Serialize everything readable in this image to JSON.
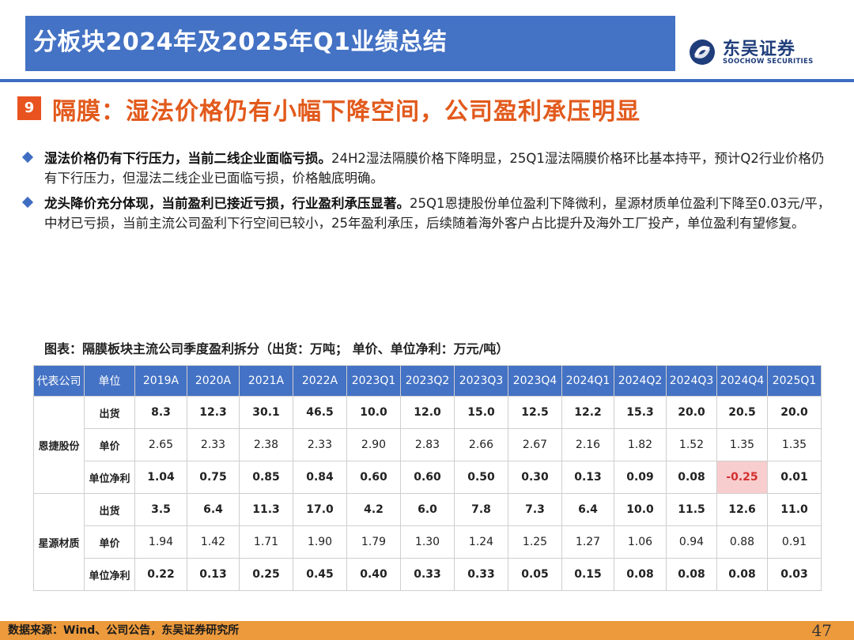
{
  "header": {
    "title": "分板块2024年及2025年Q1业绩总结"
  },
  "logo": {
    "cn": "东吴证券",
    "en": "SOOCHOW SECURITIES"
  },
  "section": {
    "number": "9",
    "title": "隔膜：湿法价格仍有小幅下降空间，公司盈利承压明显"
  },
  "bullets": [
    {
      "bold": "湿法价格仍有下行压力，当前二线企业面临亏损。",
      "text": "24H2湿法隔膜价格下降明显，25Q1湿法隔膜价格环比基本持平，预计Q2行业价格仍有下行压力，但湿法二线企业已面临亏损，价格触底明确。"
    },
    {
      "bold": "龙头降价充分体现，当前盈利已接近亏损，行业盈利承压显著。",
      "text": "25Q1恩捷股份单位盈利下降微利，星源材质单位盈利下降至0.03元/平，中材已亏损，当前主流公司盈利下行空间已较小，25年盈利承压，后续随着海外客户占比提升及海外工厂投产，单位盈利有望修复。"
    }
  ],
  "table": {
    "title": "图表：隔膜板块主流公司季度盈利拆分（出货：万吨； 单价、单位净利：万元/吨）",
    "headers": [
      "代表公司",
      "单位",
      "2019A",
      "2020A",
      "2021A",
      "2022A",
      "2023Q1",
      "2023Q2",
      "2023Q3",
      "2023Q4",
      "2024Q1",
      "2024Q2",
      "2024Q3",
      "2024Q4",
      "2025Q1"
    ],
    "companies": [
      {
        "name": "恩捷股份",
        "rows": [
          {
            "unit": "出货",
            "values": [
              "8.3",
              "12.3",
              "30.1",
              "46.5",
              "10.0",
              "12.0",
              "15.0",
              "12.5",
              "12.2",
              "15.3",
              "20.0",
              "20.5",
              "20.0"
            ]
          },
          {
            "unit": "单价",
            "values": [
              "2.65",
              "2.33",
              "2.38",
              "2.33",
              "2.90",
              "2.83",
              "2.66",
              "2.67",
              "2.16",
              "1.82",
              "1.52",
              "1.35",
              "1.35"
            ]
          },
          {
            "unit": "单位净利",
            "values": [
              "1.04",
              "0.75",
              "0.85",
              "0.84",
              "0.60",
              "0.60",
              "0.50",
              "0.30",
              "0.13",
              "0.09",
              "0.08",
              "-0.25",
              "0.01"
            ]
          }
        ]
      },
      {
        "name": "星源材质",
        "rows": [
          {
            "unit": "出货",
            "values": [
              "3.5",
              "6.4",
              "11.3",
              "17.0",
              "4.2",
              "6.0",
              "7.8",
              "7.3",
              "6.4",
              "10.0",
              "11.5",
              "12.6",
              "11.0"
            ]
          },
          {
            "unit": "单价",
            "values": [
              "1.94",
              "1.42",
              "1.71",
              "1.90",
              "1.79",
              "1.30",
              "1.24",
              "1.25",
              "1.27",
              "1.06",
              "0.94",
              "0.88",
              "0.91"
            ]
          },
          {
            "unit": "单位净利",
            "values": [
              "0.22",
              "0.13",
              "0.25",
              "0.45",
              "0.40",
              "0.33",
              "0.33",
              "0.05",
              "0.15",
              "0.08",
              "0.08",
              "0.08",
              "0.03"
            ]
          }
        ]
      }
    ],
    "highlight_color": "#f8cdcd"
  },
  "footer": {
    "source": "数据来源：Wind、公司公告，东吴证券研究所",
    "page": "47"
  },
  "colors": {
    "header_bg": "#4472c4",
    "accent_orange": "#e25a1c",
    "footer_bg": "#ec9a3c"
  }
}
